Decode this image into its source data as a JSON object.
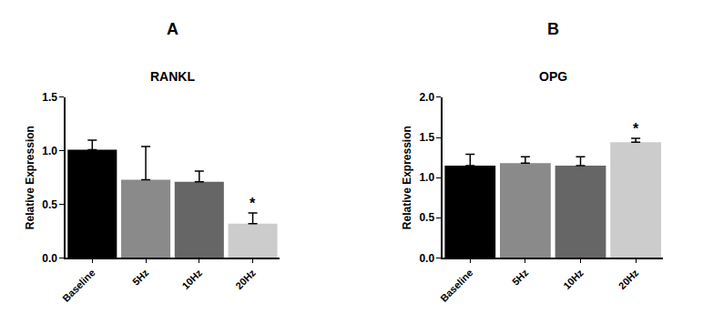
{
  "chart_data": [
    {
      "type": "bar",
      "panel": "A",
      "title": "RANKL",
      "y_label": "Relative Expression",
      "categories": [
        "Baseline",
        "5Hz",
        "10Hz",
        "20Hz"
      ],
      "values": [
        1.01,
        0.73,
        0.71,
        0.32
      ],
      "errors": [
        0.09,
        0.31,
        0.1,
        0.1
      ],
      "colors": [
        "#000000",
        "#8a8a8a",
        "#666666",
        "#cccccc"
      ],
      "ylim": [
        0,
        1.5
      ],
      "yticks": [
        {
          "value": 0,
          "label": "0.0"
        },
        {
          "value": 0.5,
          "label": "0.5"
        },
        {
          "value": 1,
          "label": "1.0"
        },
        {
          "value": 1.5,
          "label": "1.5"
        }
      ],
      "grid": false,
      "annotations": [
        {
          "category": "20Hz",
          "text": "*"
        }
      ]
    },
    {
      "type": "bar",
      "panel": "B",
      "title": "OPG",
      "y_label": "Relative Expression",
      "categories": [
        "Baseline",
        "5Hz",
        "10Hz",
        "20Hz"
      ],
      "values": [
        1.15,
        1.18,
        1.15,
        1.44
      ],
      "errors": [
        0.14,
        0.08,
        0.11,
        0.05
      ],
      "colors": [
        "#000000",
        "#8a8a8a",
        "#666666",
        "#cccccc"
      ],
      "ylim": [
        0,
        2
      ],
      "yticks": [
        {
          "value": 0,
          "label": "0.0"
        },
        {
          "value": 0.5,
          "label": "0.5"
        },
        {
          "value": 1,
          "label": "1.0"
        },
        {
          "value": 1.5,
          "label": "1.5"
        },
        {
          "value": 2,
          "label": "2.0"
        }
      ],
      "grid": false,
      "annotations": [
        {
          "category": "20Hz",
          "text": "*"
        }
      ]
    }
  ]
}
